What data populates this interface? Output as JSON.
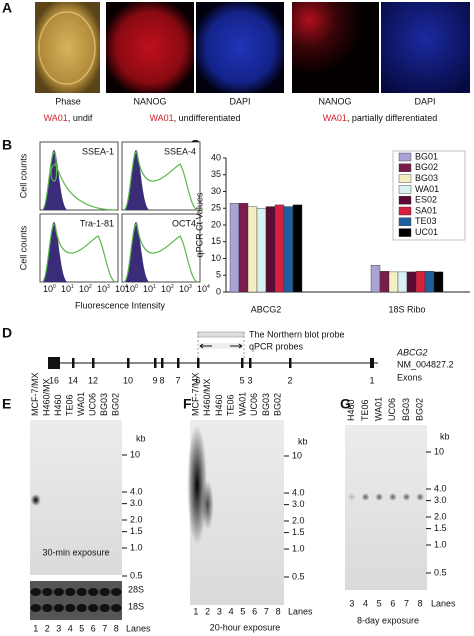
{
  "panel_labels": [
    "A",
    "B",
    "C",
    "D",
    "E",
    "F",
    "G"
  ],
  "panel_a": {
    "image_labels": [
      "Phase",
      "NANOG",
      "DAPI",
      "NANOG",
      "DAPI"
    ],
    "captions": [
      {
        "line": "WA01",
        "rest": ", undif"
      },
      {
        "line": "WA01",
        "rest": ", undifferentiated"
      },
      {
        "line": "WA01",
        "rest": ", partially differentiated"
      }
    ]
  },
  "panel_b": {
    "markers": [
      "SSEA-1",
      "SSEA-4",
      "Tra-1-81",
      "OCT4"
    ],
    "y_labels": [
      "Cell counts",
      "Cell counts"
    ],
    "x_ticks": [
      {
        "base": "10",
        "exp": "0"
      },
      {
        "base": "10",
        "exp": "1"
      },
      {
        "base": "10",
        "exp": "2"
      },
      {
        "base": "10",
        "exp": "3"
      },
      {
        "base": "10",
        "exp": "4"
      }
    ],
    "x_label": "Fluorescence  Intensity"
  },
  "chart_data": {
    "type": "bar",
    "y_label": "qPCR Ct Values",
    "categories": [
      "ABCG2",
      "18S Ribo"
    ],
    "ylim": [
      0,
      40
    ],
    "yticks": [
      0,
      5,
      10,
      15,
      20,
      25,
      30,
      35,
      40
    ],
    "series": [
      {
        "name": "BG01",
        "color": "#a9a3d6",
        "label_color": "#d2232a",
        "values": [
          26.5,
          8
        ]
      },
      {
        "name": "BG02",
        "color": "#7a1c4c",
        "label_color": "#000000",
        "values": [
          26.5,
          6.2
        ]
      },
      {
        "name": "BG03",
        "color": "#f4efc2",
        "label_color": "#000000",
        "values": [
          25.5,
          6
        ]
      },
      {
        "name": "WA01",
        "color": "#d9f1f2",
        "label_color": "#d2232a",
        "values": [
          25,
          6
        ]
      },
      {
        "name": "ES02",
        "color": "#5a0b33",
        "label_color": "#000000",
        "values": [
          25.5,
          6
        ]
      },
      {
        "name": "SA01",
        "color": "#d3213f",
        "label_color": "#000000",
        "values": [
          26,
          6.2
        ]
      },
      {
        "name": "TE03",
        "color": "#205f9f",
        "label_color": "#000000",
        "values": [
          25.5,
          6.2
        ]
      },
      {
        "name": "UC01",
        "color": "#000000",
        "label_color": "#000000",
        "values": [
          26,
          6
        ]
      }
    ]
  },
  "panel_d": {
    "probe_labels": [
      "The Northern blot probe",
      "qPCR probes"
    ],
    "gene": "ABCG2",
    "accession": "NM_004827.2",
    "exon_label": "Exons",
    "exon_numbers": [
      "16",
      "14",
      "12",
      "10",
      "9",
      "8",
      "7",
      "6",
      "5",
      "3",
      "2",
      "1"
    ]
  },
  "blots": [
    {
      "lanes": [
        "MCF-7/MX",
        "H460/MX",
        "H460",
        "TE06",
        "WA01",
        "UC06",
        "BG03",
        "BG02"
      ],
      "lane_numbers": [
        "1",
        "2",
        "3",
        "4",
        "5",
        "6",
        "7",
        "8"
      ],
      "lanes_label": "Lanes",
      "size_unit": "kb",
      "sizes": [
        10,
        {
          "value": 4,
          "label": "4.0"
        },
        {
          "value": 3,
          "label": "3.0"
        },
        {
          "value": 2,
          "label": "2.0"
        },
        1.5,
        {
          "value": 1,
          "label": "1.0"
        },
        0.5
      ],
      "exposure": "30-min exposure",
      "rrna": [
        "28S",
        "18S"
      ]
    },
    {
      "lanes": [
        "MCF-7/MX",
        "H460/MX",
        "H460",
        "TE06",
        "WA01",
        "UC06",
        "BG03",
        "BG02"
      ],
      "lane_numbers": [
        "1",
        "2",
        "3",
        "4",
        "5",
        "6",
        "7",
        "8"
      ],
      "lanes_label": "Lanes",
      "size_unit": "kb",
      "sizes": [
        10,
        {
          "value": 4,
          "label": "4.0"
        },
        {
          "value": 3,
          "label": "3.0"
        },
        {
          "value": 2,
          "label": "2.0"
        },
        1.5,
        {
          "value": 1,
          "label": "1.0"
        },
        0.5
      ],
      "exposure": "20-hour  exposure"
    },
    {
      "lanes": [
        "H460",
        "TE06",
        "WA01",
        "UC06",
        "BG03",
        "BG02"
      ],
      "lane_numbers": [
        "3",
        "4",
        "5",
        "6",
        "7",
        "8"
      ],
      "lanes_label": "Lanes",
      "size_unit": "kb",
      "sizes": [
        10,
        {
          "value": 4,
          "label": "4.0"
        },
        {
          "value": 3,
          "label": "3.0"
        },
        {
          "value": 2,
          "label": "2.0"
        },
        1.5,
        {
          "value": 1,
          "label": "1.0"
        },
        0.5
      ],
      "exposure": "8-day exposure"
    }
  ]
}
